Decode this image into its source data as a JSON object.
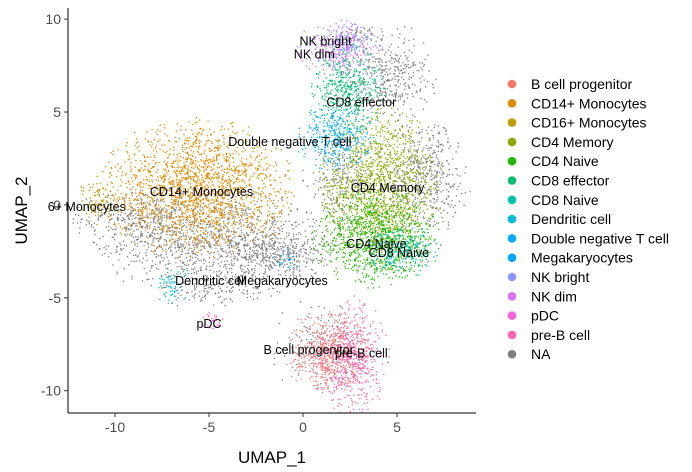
{
  "chart_data": {
    "type": "scatter",
    "xlabel": "UMAP_1",
    "ylabel": "UMAP_2",
    "xlim": [
      -12.5,
      9.2
    ],
    "ylim": [
      -11.2,
      10.6
    ],
    "xticks": [
      -10,
      -5,
      0,
      5
    ],
    "yticks": [
      -10,
      -5,
      0,
      5,
      10
    ],
    "grid": false,
    "legend_position": "right",
    "series": [
      {
        "name": "B cell progenitor",
        "color": "#F8766D",
        "clusters": [
          {
            "cx": 1.3,
            "cy": -7.9,
            "rx": 1.3,
            "ry": 1.2,
            "n": 500
          }
        ]
      },
      {
        "name": "CD14+ Monocytes",
        "color": "#E18A00",
        "clusters": [
          {
            "cx": -5.6,
            "cy": 0.9,
            "rx": 2.9,
            "ry": 2.1,
            "n": 1800
          }
        ]
      },
      {
        "name": "CD16+ Monocytes",
        "color": "#BE9C00",
        "clusters": [
          {
            "cx": -10.8,
            "cy": 0.2,
            "rx": 0.7,
            "ry": 0.8,
            "n": 90
          }
        ]
      },
      {
        "name": "CD4 Memory",
        "color": "#8CAB00",
        "clusters": [
          {
            "cx": 4.1,
            "cy": 0.9,
            "rx": 1.8,
            "ry": 2.5,
            "n": 1300
          }
        ]
      },
      {
        "name": "CD4 Naive",
        "color": "#24B700",
        "clusters": [
          {
            "cx": 3.9,
            "cy": -1.8,
            "rx": 1.9,
            "ry": 1.5,
            "n": 900
          }
        ]
      },
      {
        "name": "CD8 effector",
        "color": "#00BE70",
        "clusters": [
          {
            "cx": 2.4,
            "cy": 6.2,
            "rx": 1.1,
            "ry": 1.4,
            "n": 450
          }
        ]
      },
      {
        "name": "CD8 Naive",
        "color": "#00C1AB",
        "clusters": [
          {
            "cx": 5.3,
            "cy": -2.5,
            "rx": 1.1,
            "ry": 0.8,
            "n": 250
          }
        ]
      },
      {
        "name": "Dendritic cell",
        "color": "#00BBDA",
        "clusters": [
          {
            "cx": -6.8,
            "cy": -4.3,
            "rx": 0.5,
            "ry": 0.6,
            "n": 60
          }
        ]
      },
      {
        "name": "Double negative T cell",
        "color": "#00ACFC",
        "clusters": [
          {
            "cx": 1.7,
            "cy": 3.6,
            "rx": 1.2,
            "ry": 1.0,
            "n": 350
          }
        ]
      },
      {
        "name": "Megakaryocytes",
        "color": "#00A5FF",
        "clusters": [
          {
            "cx": -1.0,
            "cy": -3.1,
            "rx": 0.4,
            "ry": 0.4,
            "n": 25
          }
        ]
      },
      {
        "name": "NK bright",
        "color": "#8B93FF",
        "clusters": [
          {
            "cx": 2.3,
            "cy": 8.8,
            "rx": 1.0,
            "ry": 0.6,
            "n": 120
          }
        ]
      },
      {
        "name": "NK dim",
        "color": "#D575FE",
        "clusters": [
          {
            "cx": 2.0,
            "cy": 8.4,
            "rx": 1.3,
            "ry": 0.9,
            "n": 250
          }
        ]
      },
      {
        "name": "pDC",
        "color": "#F962DD",
        "clusters": [
          {
            "cx": -4.8,
            "cy": -6.2,
            "rx": 0.4,
            "ry": 0.3,
            "n": 30
          }
        ]
      },
      {
        "name": "pre-B cell",
        "color": "#FF65AC",
        "clusters": [
          {
            "cx": 2.6,
            "cy": -8.2,
            "rx": 1.1,
            "ry": 1.8,
            "n": 550
          }
        ]
      },
      {
        "name": "NA",
        "color": "#7F7F7F",
        "clusters": [
          {
            "cx": -4.5,
            "cy": -2.1,
            "rx": 3.6,
            "ry": 1.7,
            "n": 1100
          },
          {
            "cx": -8.6,
            "cy": -0.8,
            "rx": 2.0,
            "ry": 1.1,
            "n": 350
          },
          {
            "cx": -1.2,
            "cy": -2.6,
            "rx": 1.6,
            "ry": 0.8,
            "n": 300
          },
          {
            "cx": 6.6,
            "cy": 1.6,
            "rx": 1.3,
            "ry": 1.8,
            "n": 450
          },
          {
            "cx": 4.7,
            "cy": 6.9,
            "rx": 1.3,
            "ry": 1.6,
            "n": 350
          },
          {
            "cx": 2.1,
            "cy": 1.3,
            "rx": 1.2,
            "ry": 1.6,
            "n": 250
          },
          {
            "cx": -5.0,
            "cy": -4.6,
            "rx": 1.6,
            "ry": 0.6,
            "n": 100
          },
          {
            "cx": 0.9,
            "cy": -7.7,
            "rx": 1.5,
            "ry": 1.5,
            "n": 150
          },
          {
            "cx": 3.0,
            "cy": 9.1,
            "rx": 0.6,
            "ry": 0.4,
            "n": 40
          }
        ]
      }
    ],
    "annotations": [
      {
        "text": "NK bright",
        "x": 1.2,
        "y": 8.8
      },
      {
        "text": "NK dim",
        "x": 0.6,
        "y": 8.1
      },
      {
        "text": "CD8 effector",
        "x": 3.1,
        "y": 5.5
      },
      {
        "text": "Double negative T cell",
        "x": -0.7,
        "y": 3.4
      },
      {
        "text": "CD14+ Monocytes",
        "x": -5.4,
        "y": 0.7
      },
      {
        "text": "CD4 Memory",
        "x": 4.5,
        "y": 0.9
      },
      {
        "text": "6+ Monocytes",
        "x": -11.5,
        "y": -0.1
      },
      {
        "text": "CD4 Naive",
        "x": 3.9,
        "y": -2.1
      },
      {
        "text": "CD8 Naive",
        "x": 5.1,
        "y": -2.6
      },
      {
        "text": "Dendritic cell",
        "x": -4.9,
        "y": -4.1
      },
      {
        "text": "Megakaryocytes",
        "x": -1.1,
        "y": -4.1
      },
      {
        "text": "pDC",
        "x": -5.0,
        "y": -6.4
      },
      {
        "text": "B cell progenitor",
        "x": 0.3,
        "y": -7.8
      },
      {
        "text": "pre-B cell",
        "x": 3.1,
        "y": -8.0
      }
    ]
  }
}
